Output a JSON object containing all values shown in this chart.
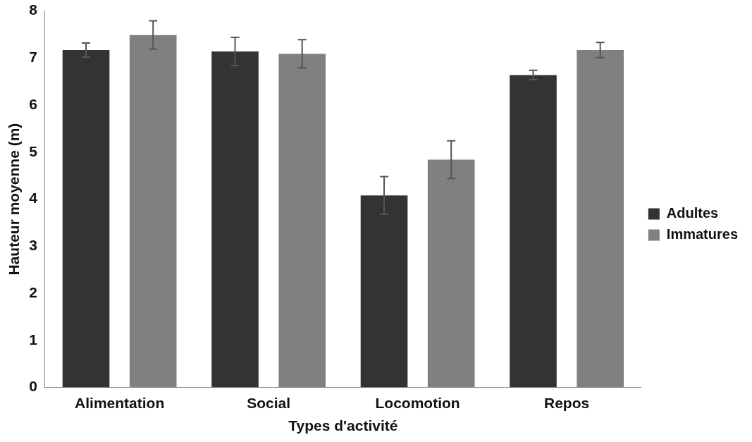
{
  "chart_data": {
    "type": "bar",
    "xlabel": "Types d'activité",
    "ylabel": "Hauteur moyenne (m)",
    "categories": [
      "Alimentation",
      "Social",
      "Locomotion",
      "Repos"
    ],
    "series": [
      {
        "name": "Adultes",
        "color": "#333333",
        "values": [
          7.17,
          7.14,
          4.08,
          6.64
        ],
        "errors": [
          0.15,
          0.3,
          0.4,
          0.1
        ]
      },
      {
        "name": "Immatures",
        "color": "#808080",
        "values": [
          7.49,
          7.09,
          4.84,
          7.17
        ],
        "errors": [
          0.3,
          0.3,
          0.4,
          0.16
        ]
      }
    ],
    "ylim": [
      0,
      8
    ],
    "yticks": [
      0,
      1,
      2,
      3,
      4,
      5,
      6,
      7,
      8
    ],
    "grid": false,
    "legend": "right"
  }
}
